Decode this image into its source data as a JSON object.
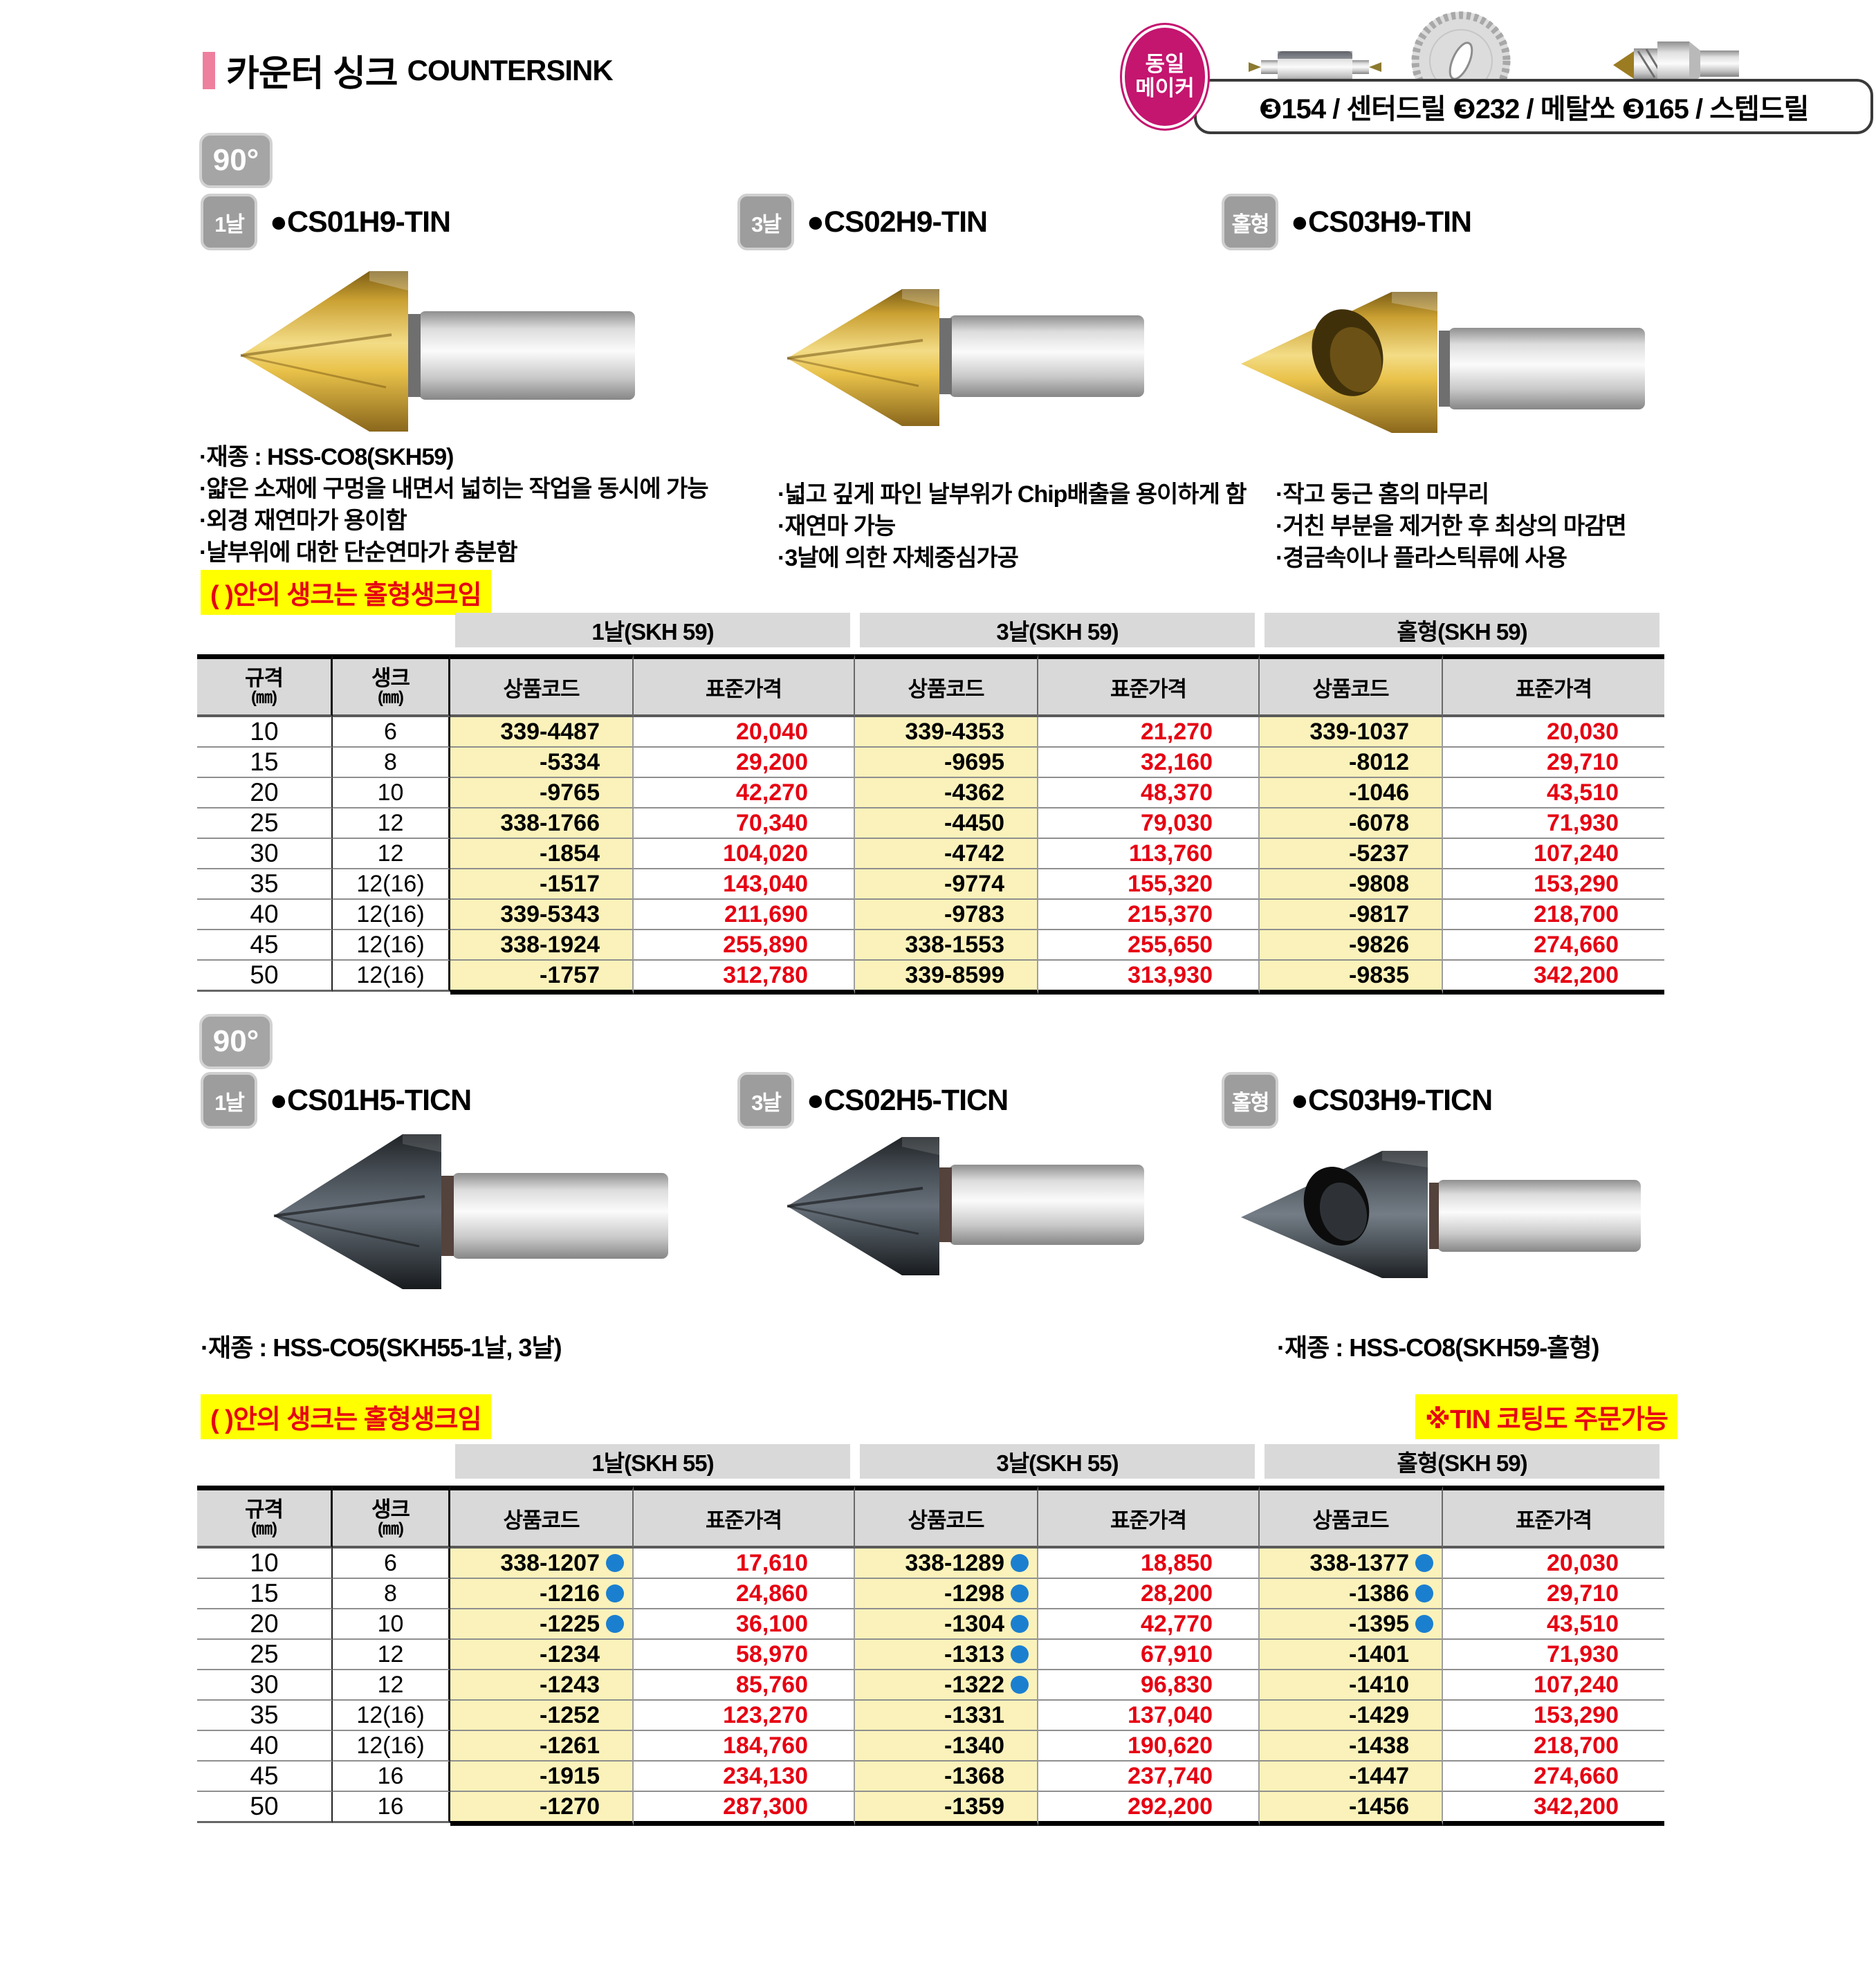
{
  "colors": {
    "accent_pink": "#ee7f9e",
    "maker_magenta": "#c4156f",
    "price_red": "#e60012",
    "note_yellow": "#ffff00",
    "code_cell_yellow": "#faf2ba",
    "dot_blue": "#1b7fd0",
    "badge_gray": "#9d9d9d",
    "header_gray": "#d9d9d9"
  },
  "page": {
    "title_ko": "카운터 싱크",
    "title_en": "COUNTERSINK",
    "angle_badge": "90°"
  },
  "maker": {
    "badge_top": "동일",
    "badge_bottom": "메이커",
    "bar": "❸154 / 센터드릴 ❸232 / 메탈쏘 ❸165 / 스텝드릴"
  },
  "section1": {
    "products": [
      {
        "badge": "1날",
        "code": "●CS01H9-TIN"
      },
      {
        "badge": "3날",
        "code": "●CS02H9-TIN"
      },
      {
        "badge": "홀형",
        "code": "●CS03H9-TIN"
      }
    ],
    "features": [
      [
        "·재종 : HSS-CO8(SKH59)",
        "·얇은 소재에 구멍을 내면서 넓히는 작업을 동시에 가능",
        "·외경 재연마가 용이함",
        "·날부위에 대한 단순연마가 충분함"
      ],
      [
        "·넓고 깊게 파인 날부위가 Chip배출을 용이하게 함",
        "·재연마 가능",
        "·3날에 의한 자체중심가공"
      ],
      [
        "·작고 둥근 홈의 마무리",
        "·거친 부분을 제거한 후  최상의 마감면",
        "·경금속이나 플라스틱류에 사용"
      ]
    ],
    "note": "( )안의 생크는 홀형생크임",
    "table": {
      "groups": [
        "1날(SKH 59)",
        "3날(SKH 59)",
        "홀형(SKH 59)"
      ],
      "headers": {
        "spec": "규격",
        "spec_unit": "(㎜)",
        "shank": "생크",
        "shank_unit": "(㎜)",
        "code": "상품코드",
        "price": "표준가격"
      },
      "rows": [
        {
          "spec": "10",
          "shank": "6",
          "items": [
            {
              "code": "339-4487",
              "dot": false,
              "price": "20,040"
            },
            {
              "code": "339-4353",
              "dot": false,
              "price": "21,270"
            },
            {
              "code": "339-1037",
              "dot": false,
              "price": "20,030"
            }
          ]
        },
        {
          "spec": "15",
          "shank": "8",
          "items": [
            {
              "code": "-5334",
              "dot": false,
              "price": "29,200"
            },
            {
              "code": "-9695",
              "dot": false,
              "price": "32,160"
            },
            {
              "code": "-8012",
              "dot": false,
              "price": "29,710"
            }
          ]
        },
        {
          "spec": "20",
          "shank": "10",
          "items": [
            {
              "code": "-9765",
              "dot": false,
              "price": "42,270"
            },
            {
              "code": "-4362",
              "dot": false,
              "price": "48,370"
            },
            {
              "code": "-1046",
              "dot": false,
              "price": "43,510"
            }
          ]
        },
        {
          "spec": "25",
          "shank": "12",
          "items": [
            {
              "code": "338-1766",
              "dot": false,
              "price": "70,340"
            },
            {
              "code": "-4450",
              "dot": false,
              "price": "79,030"
            },
            {
              "code": "-6078",
              "dot": false,
              "price": "71,930"
            }
          ]
        },
        {
          "spec": "30",
          "shank": "12",
          "items": [
            {
              "code": "-1854",
              "dot": false,
              "price": "104,020"
            },
            {
              "code": "-4742",
              "dot": false,
              "price": "113,760"
            },
            {
              "code": "-5237",
              "dot": false,
              "price": "107,240"
            }
          ]
        },
        {
          "spec": "35",
          "shank": "12(16)",
          "items": [
            {
              "code": "-1517",
              "dot": false,
              "price": "143,040"
            },
            {
              "code": "-9774",
              "dot": false,
              "price": "155,320"
            },
            {
              "code": "-9808",
              "dot": false,
              "price": "153,290"
            }
          ]
        },
        {
          "spec": "40",
          "shank": "12(16)",
          "items": [
            {
              "code": "339-5343",
              "dot": false,
              "price": "211,690"
            },
            {
              "code": "-9783",
              "dot": false,
              "price": "215,370"
            },
            {
              "code": "-9817",
              "dot": false,
              "price": "218,700"
            }
          ]
        },
        {
          "spec": "45",
          "shank": "12(16)",
          "items": [
            {
              "code": "338-1924",
              "dot": false,
              "price": "255,890"
            },
            {
              "code": "338-1553",
              "dot": false,
              "price": "255,650"
            },
            {
              "code": "-9826",
              "dot": false,
              "price": "274,660"
            }
          ]
        },
        {
          "spec": "50",
          "shank": "12(16)",
          "items": [
            {
              "code": "-1757",
              "dot": false,
              "price": "312,780"
            },
            {
              "code": "339-8599",
              "dot": false,
              "price": "313,930"
            },
            {
              "code": "-9835",
              "dot": false,
              "price": "342,200"
            }
          ]
        }
      ]
    }
  },
  "section2": {
    "products": [
      {
        "badge": "1날",
        "code": "●CS01H5-TICN"
      },
      {
        "badge": "3날",
        "code": "●CS02H5-TICN"
      },
      {
        "badge": "홀형",
        "code": "●CS03H9-TICN"
      }
    ],
    "materials": [
      "·재종 : HSS-CO5(SKH55-1날, 3날)",
      "·재종 : HSS-CO8(SKH59-홀형)"
    ],
    "note": "( )안의 생크는 홀형생크임",
    "note2": "※TIN 코팅도 주문가능",
    "table": {
      "groups": [
        "1날(SKH 55)",
        "3날(SKH 55)",
        "홀형(SKH 59)"
      ],
      "headers": {
        "spec": "규격",
        "spec_unit": "(㎜)",
        "shank": "생크",
        "shank_unit": "(㎜)",
        "code": "상품코드",
        "price": "표준가격"
      },
      "rows": [
        {
          "spec": "10",
          "shank": "6",
          "items": [
            {
              "code": "338-1207",
              "dot": true,
              "price": "17,610"
            },
            {
              "code": "338-1289",
              "dot": true,
              "price": "18,850"
            },
            {
              "code": "338-1377",
              "dot": true,
              "price": "20,030"
            }
          ]
        },
        {
          "spec": "15",
          "shank": "8",
          "items": [
            {
              "code": "-1216",
              "dot": true,
              "price": "24,860"
            },
            {
              "code": "-1298",
              "dot": true,
              "price": "28,200"
            },
            {
              "code": "-1386",
              "dot": true,
              "price": "29,710"
            }
          ]
        },
        {
          "spec": "20",
          "shank": "10",
          "items": [
            {
              "code": "-1225",
              "dot": true,
              "price": "36,100"
            },
            {
              "code": "-1304",
              "dot": true,
              "price": "42,770"
            },
            {
              "code": "-1395",
              "dot": true,
              "price": "43,510"
            }
          ]
        },
        {
          "spec": "25",
          "shank": "12",
          "items": [
            {
              "code": "-1234",
              "dot": false,
              "price": "58,970"
            },
            {
              "code": "-1313",
              "dot": true,
              "price": "67,910"
            },
            {
              "code": "-1401",
              "dot": false,
              "price": "71,930"
            }
          ]
        },
        {
          "spec": "30",
          "shank": "12",
          "items": [
            {
              "code": "-1243",
              "dot": false,
              "price": "85,760"
            },
            {
              "code": "-1322",
              "dot": true,
              "price": "96,830"
            },
            {
              "code": "-1410",
              "dot": false,
              "price": "107,240"
            }
          ]
        },
        {
          "spec": "35",
          "shank": "12(16)",
          "items": [
            {
              "code": "-1252",
              "dot": false,
              "price": "123,270"
            },
            {
              "code": "-1331",
              "dot": false,
              "price": "137,040"
            },
            {
              "code": "-1429",
              "dot": false,
              "price": "153,290"
            }
          ]
        },
        {
          "spec": "40",
          "shank": "12(16)",
          "items": [
            {
              "code": "-1261",
              "dot": false,
              "price": "184,760"
            },
            {
              "code": "-1340",
              "dot": false,
              "price": "190,620"
            },
            {
              "code": "-1438",
              "dot": false,
              "price": "218,700"
            }
          ]
        },
        {
          "spec": "45",
          "shank": "16",
          "items": [
            {
              "code": "-1915",
              "dot": false,
              "price": "234,130"
            },
            {
              "code": "-1368",
              "dot": false,
              "price": "237,740"
            },
            {
              "code": "-1447",
              "dot": false,
              "price": "274,660"
            }
          ]
        },
        {
          "spec": "50",
          "shank": "16",
          "items": [
            {
              "code": "-1270",
              "dot": false,
              "price": "287,300"
            },
            {
              "code": "-1359",
              "dot": false,
              "price": "292,200"
            },
            {
              "code": "-1456",
              "dot": false,
              "price": "342,200"
            }
          ]
        }
      ]
    }
  }
}
